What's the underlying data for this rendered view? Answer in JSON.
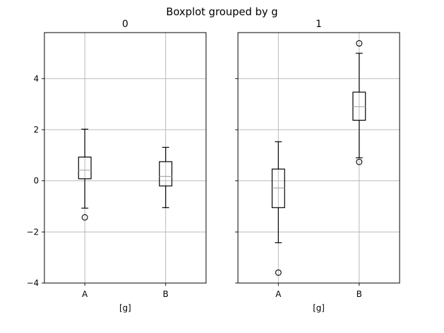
{
  "chart_data": {
    "type": "boxplot",
    "title": "Boxplot grouped by g",
    "ylim": [
      -4,
      5.8
    ],
    "yticks": [
      -4,
      -2,
      0,
      2,
      4
    ],
    "grid": true,
    "colors": {
      "box": "#000000",
      "median": "#aaaaaa",
      "grid": "#b0b0b0"
    },
    "panels": [
      {
        "title": "0",
        "xlabel": "[g]",
        "categories": [
          "A",
          "B"
        ],
        "boxes": [
          {
            "whislo": -1.07,
            "q1": 0.08,
            "med": 0.42,
            "q3": 0.93,
            "whishi": 2.02,
            "fliers": [
              -1.43
            ]
          },
          {
            "whislo": -1.05,
            "q1": -0.2,
            "med": 0.17,
            "q3": 0.75,
            "whishi": 1.31,
            "fliers": []
          }
        ]
      },
      {
        "title": "1",
        "xlabel": "[g]",
        "categories": [
          "A",
          "B"
        ],
        "boxes": [
          {
            "whislo": -2.42,
            "q1": -1.05,
            "med": -0.28,
            "q3": 0.46,
            "whishi": 1.53,
            "fliers": [
              -3.59
            ]
          },
          {
            "whislo": 0.9,
            "q1": 2.37,
            "med": 2.9,
            "q3": 3.47,
            "whishi": 4.99,
            "fliers": [
              0.74,
              5.38
            ]
          }
        ]
      }
    ]
  }
}
